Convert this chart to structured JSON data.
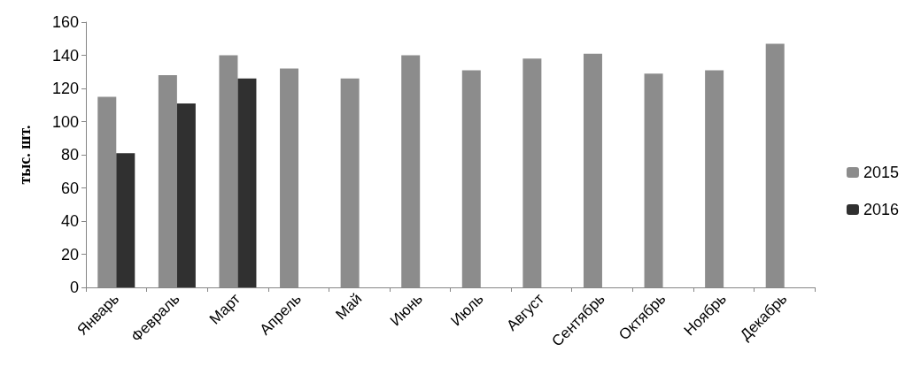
{
  "chart_data": {
    "type": "bar",
    "ylabel": "тыс. шт.",
    "categories": [
      "Январь",
      "Февраль",
      "Март",
      "Апрель",
      "Май",
      "Июнь",
      "Июль",
      "Август",
      "Сентябрь",
      "Октябрь",
      "Ноябрь",
      "Декабрь"
    ],
    "series": [
      {
        "name": "2015",
        "color": "#8c8c8c",
        "values": [
          115,
          128,
          140,
          132,
          126,
          140,
          131,
          138,
          141,
          129,
          131,
          147
        ]
      },
      {
        "name": "2016",
        "color": "#303030",
        "values": [
          81,
          111,
          126,
          null,
          null,
          null,
          null,
          null,
          null,
          null,
          null,
          null
        ]
      }
    ],
    "ylim": [
      0,
      160
    ],
    "yticks": [
      0,
      20,
      40,
      60,
      80,
      100,
      120,
      140,
      160
    ],
    "grid": false,
    "legend": "right"
  }
}
